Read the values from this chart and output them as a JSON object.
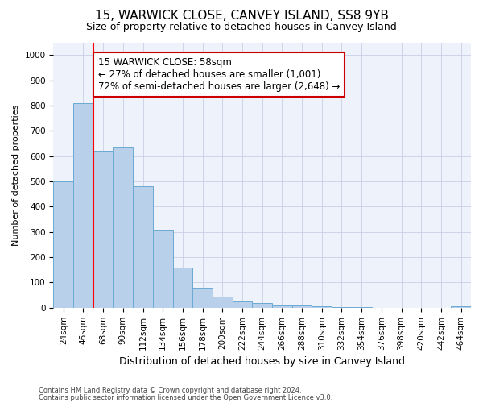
{
  "title": "15, WARWICK CLOSE, CANVEY ISLAND, SS8 9YB",
  "subtitle": "Size of property relative to detached houses in Canvey Island",
  "xlabel": "Distribution of detached houses by size in Canvey Island",
  "ylabel": "Number of detached properties",
  "bar_color": "#b8d0ea",
  "bar_edge_color": "#6aaad4",
  "categories": [
    "24sqm",
    "46sqm",
    "68sqm",
    "90sqm",
    "112sqm",
    "134sqm",
    "156sqm",
    "178sqm",
    "200sqm",
    "222sqm",
    "244sqm",
    "266sqm",
    "288sqm",
    "310sqm",
    "332sqm",
    "354sqm",
    "376sqm",
    "398sqm",
    "420sqm",
    "442sqm",
    "464sqm"
  ],
  "values": [
    500,
    810,
    620,
    635,
    480,
    310,
    160,
    80,
    45,
    25,
    20,
    10,
    8,
    5,
    3,
    2,
    1,
    1,
    1,
    1,
    5
  ],
  "property_label": "15 WARWICK CLOSE: 58sqm",
  "pct_smaller": "27% of detached houses are smaller (1,001)",
  "pct_larger_semi": "72% of semi-detached houses are larger (2,648)",
  "ylim": [
    0,
    1050
  ],
  "yticks": [
    0,
    100,
    200,
    300,
    400,
    500,
    600,
    700,
    800,
    900,
    1000
  ],
  "annotation_box_color": "#ffffff",
  "annotation_box_edge": "#cc0000",
  "footnote1": "Contains HM Land Registry data © Crown copyright and database right 2024.",
  "footnote2": "Contains public sector information licensed under the Open Government Licence v3.0.",
  "background_color": "#eef2fb",
  "grid_color": "#c8d0e8",
  "title_fontsize": 11,
  "subtitle_fontsize": 9,
  "ylabel_fontsize": 8,
  "xlabel_fontsize": 9,
  "tick_fontsize": 7.5,
  "annot_fontsize": 8.5
}
